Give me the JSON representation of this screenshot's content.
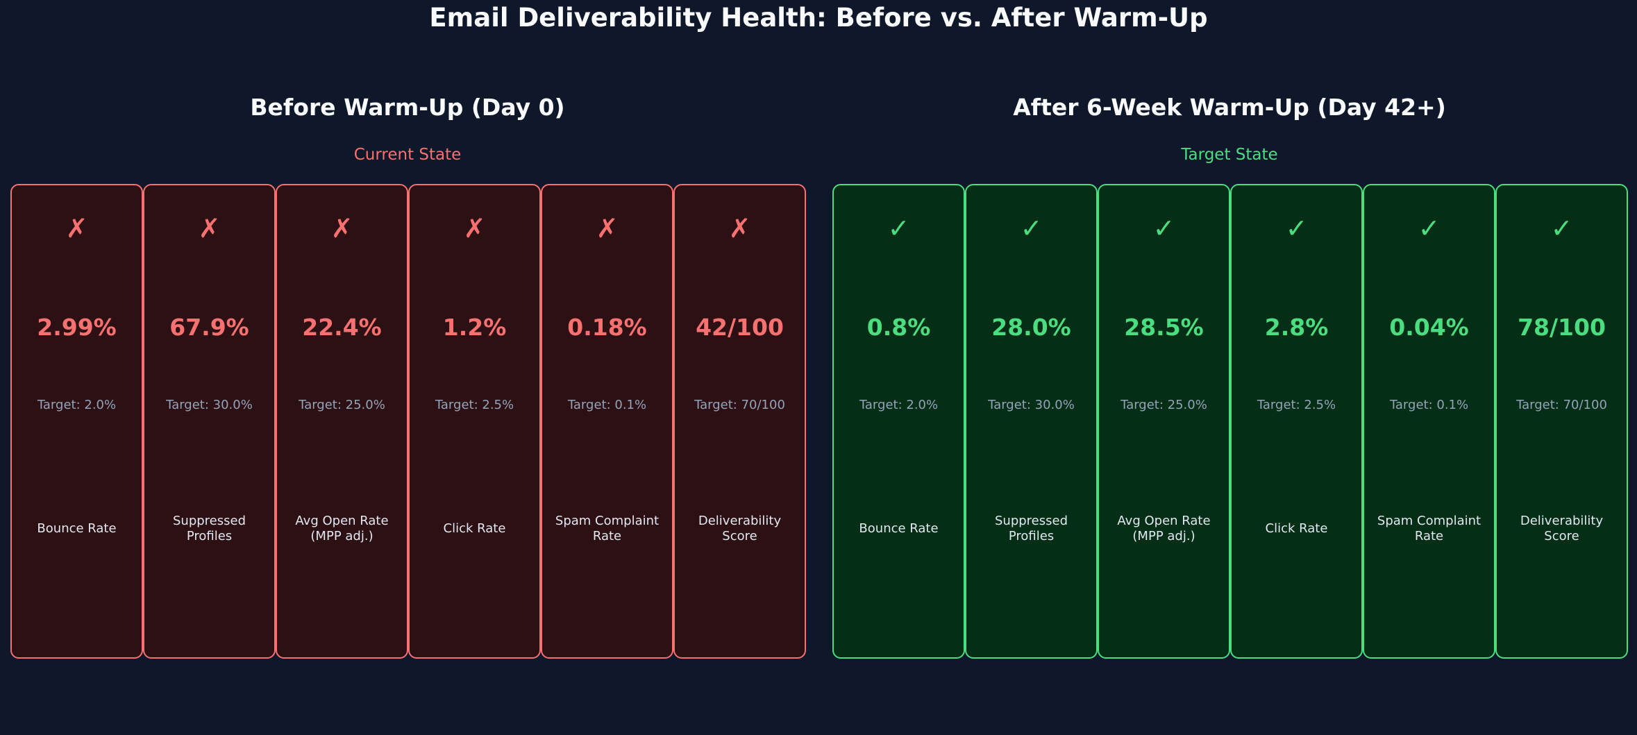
{
  "title": "Email Deliverability Health: Before vs. After Warm-Up",
  "colors": {
    "background": "#0f172a",
    "bad_border": "#f87171",
    "bad_fill": "#2d1014",
    "bad_text": "#f87171",
    "good_border": "#4ade80",
    "good_fill": "#052e16",
    "good_text": "#4ade80"
  },
  "chart_data": {
    "type": "table",
    "title": "Email Deliverability Health: Before vs. After Warm-Up",
    "panels": [
      {
        "title": "Before Warm-Up (Day 0)",
        "subtitle": "Current State",
        "status": "bad",
        "mark": "✗",
        "metrics": [
          {
            "value": "2.99%",
            "target": "Target: 2.0%",
            "label": "Bounce Rate"
          },
          {
            "value": "67.9%",
            "target": "Target: 30.0%",
            "label": "Suppressed Profiles"
          },
          {
            "value": "22.4%",
            "target": "Target: 25.0%",
            "label": "Avg Open Rate (MPP adj.)"
          },
          {
            "value": "1.2%",
            "target": "Target: 2.5%",
            "label": "Click Rate"
          },
          {
            "value": "0.18%",
            "target": "Target: 0.1%",
            "label": "Spam Complaint Rate"
          },
          {
            "value": "42/100",
            "target": "Target: 70/100",
            "label": "Deliverability Score"
          }
        ]
      },
      {
        "title": "After 6-Week Warm-Up (Day 42+)",
        "subtitle": "Target State",
        "status": "good",
        "mark": "✓",
        "metrics": [
          {
            "value": "0.8%",
            "target": "Target: 2.0%",
            "label": "Bounce Rate"
          },
          {
            "value": "28.0%",
            "target": "Target: 30.0%",
            "label": "Suppressed Profiles"
          },
          {
            "value": "28.5%",
            "target": "Target: 25.0%",
            "label": "Avg Open Rate (MPP adj.)"
          },
          {
            "value": "2.8%",
            "target": "Target: 2.5%",
            "label": "Click Rate"
          },
          {
            "value": "0.04%",
            "target": "Target: 0.1%",
            "label": "Spam Complaint Rate"
          },
          {
            "value": "78/100",
            "target": "Target: 70/100",
            "label": "Deliverability Score"
          }
        ]
      }
    ]
  }
}
